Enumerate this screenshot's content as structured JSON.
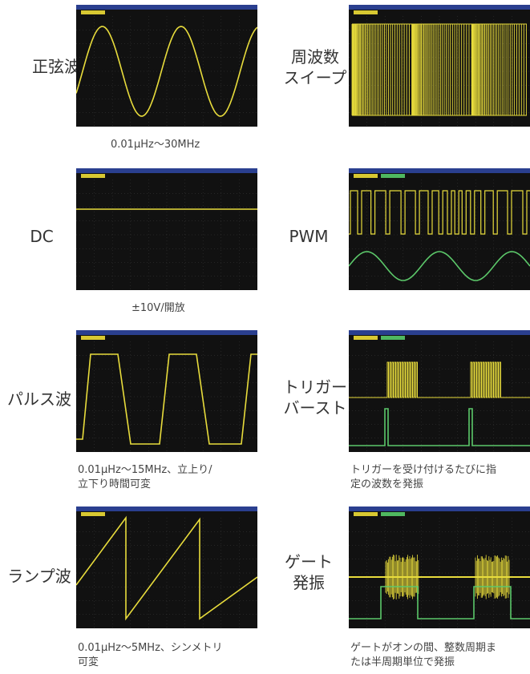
{
  "panels": [
    {
      "label": "正弦波",
      "caption": "0.01μHz～30MHz",
      "wave": "sine"
    },
    {
      "label": "周波数\nスイープ",
      "caption": "",
      "wave": "sweep"
    },
    {
      "label": "DC",
      "caption": "±10V/開放",
      "wave": "dc"
    },
    {
      "label": "PWM",
      "caption": "",
      "wave": "pwm"
    },
    {
      "label": "パルス波",
      "caption": "0.01μHz～15MHz、立上り/\n立下り時間可変",
      "wave": "pulse"
    },
    {
      "label": "トリガー\nバースト",
      "caption": "トリガーを受け付けるたびに指\n定の波数を発振",
      "wave": "burst"
    },
    {
      "label": "ランプ波",
      "caption": "0.01μHz～5MHz、シンメトリ\n可変",
      "wave": "ramp"
    },
    {
      "label": "ゲート\n発振",
      "caption": "ゲートがオンの間、整数周期ま\nたは半周期単位で発振",
      "wave": "gate"
    }
  ],
  "colors": {
    "trace_yellow": "#e8dc3c",
    "trace_green": "#5cc86a",
    "screen": "#111111",
    "title_bar": "#2a3f8f",
    "grid": "#3a3a3a"
  }
}
